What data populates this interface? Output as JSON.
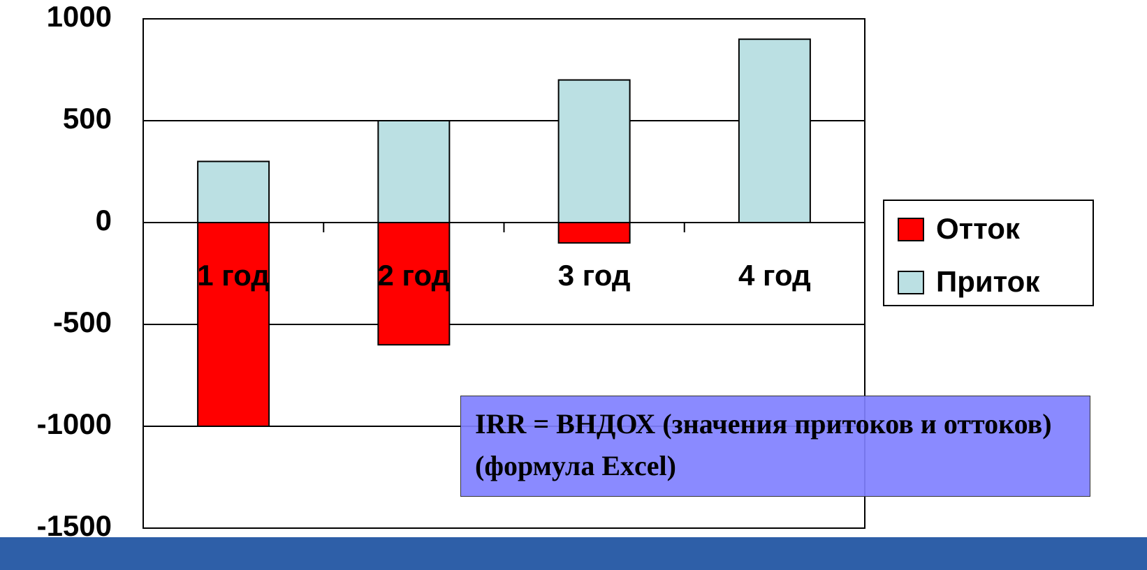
{
  "chart_data": {
    "type": "stacked_bar",
    "categories": [
      "1 год",
      "2 год",
      "3 год",
      "4 год"
    ],
    "series": [
      {
        "name": "Отток",
        "color": "#ff0000",
        "values": [
          -1000,
          -600,
          -100,
          0
        ]
      },
      {
        "name": "Приток",
        "color": "#bbe0e3",
        "values": [
          300,
          500,
          700,
          900
        ]
      }
    ],
    "ylim": [
      -1500,
      1000
    ],
    "yticks": [
      -1500,
      -1000,
      -500,
      0,
      500,
      1000
    ],
    "grid": true,
    "legend": "right",
    "annotation": "IRR = ВНДОХ (значения притоков и оттоков) (формула Excel)"
  }
}
